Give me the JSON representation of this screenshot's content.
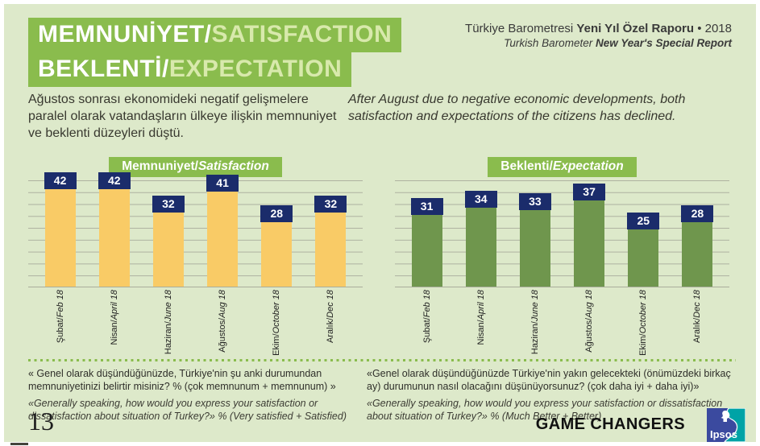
{
  "header": {
    "title_line1_tr": "MEMNUNİYET/",
    "title_line1_en": "SATISFACTION",
    "title_line2_tr": "BEKLENTİ/",
    "title_line2_en": "EXPECTATION",
    "report_line1_prefix": "Türkiye Barometresi ",
    "report_line1_bold": "Yeni Yıl Özel Raporu",
    "report_line1_suffix": " • 2018",
    "report_line2_prefix": "Turkish Barometer ",
    "report_line2_bold": "New Year's Special Report"
  },
  "intro": {
    "turkish": "Ağustos sonrası ekonomideki negatif gelişmelere paralel olarak vatandaşların ülkeye ilişkin memnuniyet ve beklenti düzeyleri düştü.",
    "english": "After August due to negative economic developments, both satisfaction and expectations of the citizens has declined."
  },
  "chart_data": [
    {
      "type": "bar",
      "title": "Memnuniyet/Satisfaction",
      "title_tr": "Memnuniyet/",
      "title_en": "Satisfaction",
      "categories": [
        "Şubat/Feb 18",
        "Nisan/April 18",
        "Haziran/June 18",
        "Ağustos/Aug 18",
        "Ekim/October 18",
        "Aralık/Dec 18"
      ],
      "values": [
        42,
        42,
        32,
        41,
        28,
        32
      ],
      "ylim": [
        0,
        45
      ],
      "gridline_step": 5,
      "grid": "horizontal",
      "legend": "none",
      "bar_color": "#f9cb66",
      "value_box_color": "#1b2c6b",
      "value_text_color": "#ffffff"
    },
    {
      "type": "bar",
      "title": "Beklenti/Expectation",
      "title_tr": "Beklenti/",
      "title_en": "Expectation",
      "categories": [
        "Şubat/Feb 18",
        "Nisan/April 18",
        "Haziran/June 18",
        "Ağustos/Aug 18",
        "Ekim/October 18",
        "Aralık/Dec 18"
      ],
      "values": [
        31,
        34,
        33,
        37,
        25,
        28
      ],
      "ylim": [
        0,
        45
      ],
      "gridline_step": 5,
      "grid": "horizontal",
      "legend": "none",
      "bar_color": "#6f964d",
      "value_box_color": "#1b2c6b",
      "value_text_color": "#ffffff"
    }
  ],
  "footnotes": {
    "left_tr": "« Genel olarak düşündüğünüzde, Türkiye'nin şu anki durumundan memnuniyetinizi belirtir misiniz?  % (çok memnunum + memnunum) »",
    "left_en": "«Generally speaking, how would you express your satisfaction or dissatisfaction about  situation of Turkey?» % (Very satisfied + Satisfied)",
    "right_tr": "«Genel olarak düşündüğünüzde Türkiye'nin yakın gelecekteki (önümüzdeki birkaç ay) durumunun nasıl olacağını düşünüyorsunuz? (çok daha iyi + daha iyi)»",
    "right_en": "«Generally speaking, how would you express your satisfaction or dissatisfaction about  situation of Turkey?» % (Much Better + Better)"
  },
  "footer": {
    "page_number": "13",
    "brand": "GAME CHANGERS",
    "logo_text": "Ipsos"
  },
  "colors": {
    "page_background": "#dde9ca",
    "accent_green": "#8abc4d",
    "light_green_text": "#d8e9ac",
    "satisfaction_bar": "#f9cb66",
    "expectation_bar": "#6f964d",
    "value_box_navy": "#1b2c6b",
    "gridline": "#adb1a0",
    "ipsos_blue": "#3b4a9f",
    "ipsos_teal": "#00a3a6"
  }
}
